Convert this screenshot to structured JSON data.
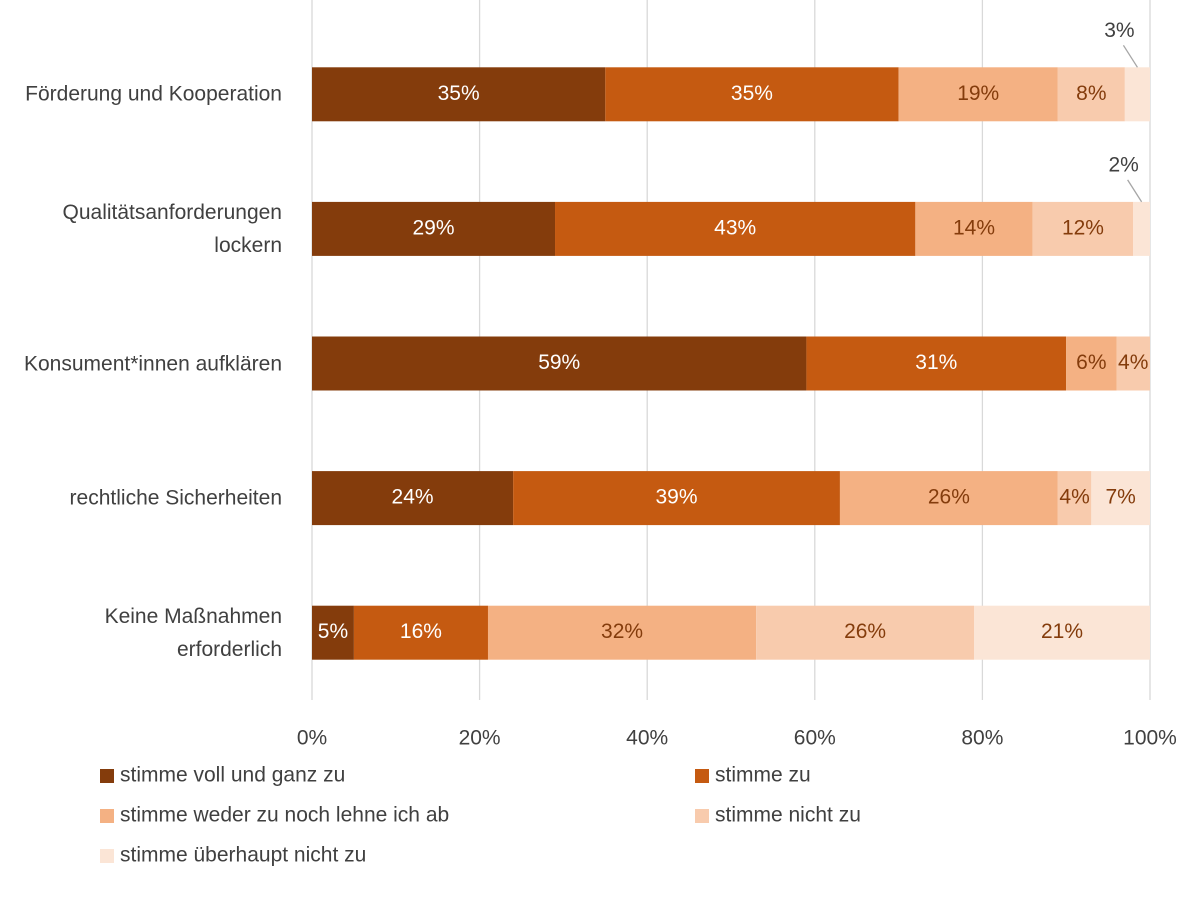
{
  "chart_data": {
    "type": "stacked_barh",
    "categories": [
      "Förderung und Kooperation",
      "Qualitätsanforderungen lockern",
      "Konsument*innen aufklären",
      "rechtliche Sicherheiten",
      "Keine Maßnahmen erforderlich"
    ],
    "series": [
      {
        "name": "stimme voll und ganz zu",
        "color": "#843c0c",
        "label_color": "#ffffff",
        "values": [
          35,
          29,
          59,
          24,
          5
        ],
        "value_labels": [
          "35%",
          "29%",
          "59%",
          "24%",
          "5%"
        ]
      },
      {
        "name": "stimme zu",
        "color": "#c55a11",
        "label_color": "#ffffff",
        "values": [
          35,
          43,
          31,
          39,
          16
        ],
        "value_labels": [
          "35%",
          "43%",
          "31%",
          "39%",
          "16%"
        ]
      },
      {
        "name": "stimme weder zu noch lehne ich ab",
        "color": "#f4b183",
        "label_color": "#843c0c",
        "values": [
          19,
          14,
          6,
          26,
          32
        ],
        "value_labels": [
          "19%",
          "14%",
          "6%",
          "26%",
          "32%"
        ]
      },
      {
        "name": "stimme nicht zu",
        "color": "#f8cbad",
        "label_color": "#843c0c",
        "values": [
          8,
          12,
          4,
          4,
          26
        ],
        "value_labels": [
          "8%",
          "12%",
          "4%",
          "4%",
          "26%"
        ]
      },
      {
        "name": "stimme überhaupt nicht zu",
        "color": "#fbe5d6",
        "label_color": "#843c0c",
        "values": [
          3,
          2,
          null,
          7,
          21
        ],
        "value_labels": [
          "3%",
          "2%",
          null,
          "7%",
          "21%"
        ]
      }
    ],
    "xlim": [
      0,
      100
    ],
    "xticks": [
      {
        "value": 0,
        "label": "0%"
      },
      {
        "value": 20,
        "label": "20%"
      },
      {
        "value": 40,
        "label": "40%"
      },
      {
        "value": 60,
        "label": "60%"
      },
      {
        "value": 80,
        "label": "80%"
      },
      {
        "value": 100,
        "label": "100%"
      }
    ],
    "grid": true
  }
}
